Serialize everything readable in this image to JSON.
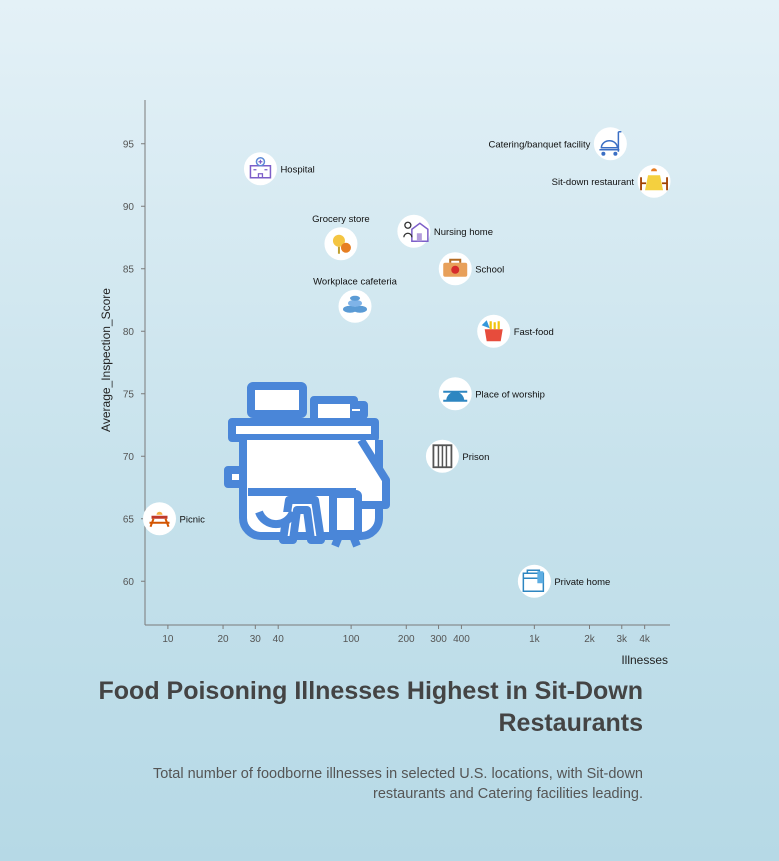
{
  "chart_data": {
    "type": "scatter",
    "title": "Food Poisoning Illnesses Highest in Sit-Down Restaurants",
    "subtitle": "Total number of foodborne illnesses in selected U.S. locations, with Sit-down restaurants and Catering facilities leading.",
    "xlabel": "Illnesses",
    "ylabel": "Average_Inspection_Score",
    "x_scale": "log",
    "xlim": [
      7.5,
      5500
    ],
    "ylim": [
      56.5,
      98.5
    ],
    "x_ticks": [
      {
        "value": 10,
        "label": "10"
      },
      {
        "value": 20,
        "label": "20"
      },
      {
        "value": 30,
        "label": "30"
      },
      {
        "value": 40,
        "label": "40"
      },
      {
        "value": 100,
        "label": "100"
      },
      {
        "value": 200,
        "label": "200"
      },
      {
        "value": 300,
        "label": "300"
      },
      {
        "value": 400,
        "label": "400"
      },
      {
        "value": 1000,
        "label": "1k"
      },
      {
        "value": 2000,
        "label": "2k"
      },
      {
        "value": 3000,
        "label": "3k"
      },
      {
        "value": 4000,
        "label": "4k"
      }
    ],
    "y_ticks": [
      60,
      65,
      70,
      75,
      80,
      85,
      90,
      95
    ],
    "grid": false,
    "points": [
      {
        "name": "Picnic",
        "x": 9,
        "y": 65,
        "icon": "picnic-table-icon",
        "label_pos": "right"
      },
      {
        "name": "Hospital",
        "x": 32,
        "y": 93,
        "icon": "hospital-icon",
        "label_pos": "right"
      },
      {
        "name": "Grocery store",
        "x": 88,
        "y": 87,
        "icon": "grocery-icon",
        "label_pos": "top"
      },
      {
        "name": "Workplace cafeteria",
        "x": 105,
        "y": 82,
        "icon": "cafeteria-icon",
        "label_pos": "top"
      },
      {
        "name": "Nursing home",
        "x": 220,
        "y": 88,
        "icon": "nursing-home-icon",
        "label_pos": "right"
      },
      {
        "name": "School",
        "x": 370,
        "y": 85,
        "icon": "school-lunchbox-icon",
        "label_pos": "right"
      },
      {
        "name": "Fast-food",
        "x": 600,
        "y": 80,
        "icon": "fast-food-icon",
        "label_pos": "right"
      },
      {
        "name": "Place of worship",
        "x": 370,
        "y": 75,
        "icon": "place-of-worship-icon",
        "label_pos": "right"
      },
      {
        "name": "Prison",
        "x": 315,
        "y": 70,
        "icon": "prison-icon",
        "label_pos": "right"
      },
      {
        "name": "Private home",
        "x": 1000,
        "y": 60,
        "icon": "private-home-icon",
        "label_pos": "right"
      },
      {
        "name": "Catering/banquet facility",
        "x": 2600,
        "y": 95,
        "icon": "catering-cart-icon",
        "label_pos": "left"
      },
      {
        "name": "Sit-down restaurant",
        "x": 4500,
        "y": 92,
        "icon": "restaurant-table-icon",
        "label_pos": "left"
      }
    ],
    "decoration": {
      "icon": "food-stall-icon",
      "color": "#4a86d8"
    }
  },
  "colors": {
    "axis": "#7a7a7a",
    "title": "#444444",
    "subtitle": "#555555",
    "icon_circle": "#ffffff",
    "stall_blue": "#4a86d8"
  }
}
